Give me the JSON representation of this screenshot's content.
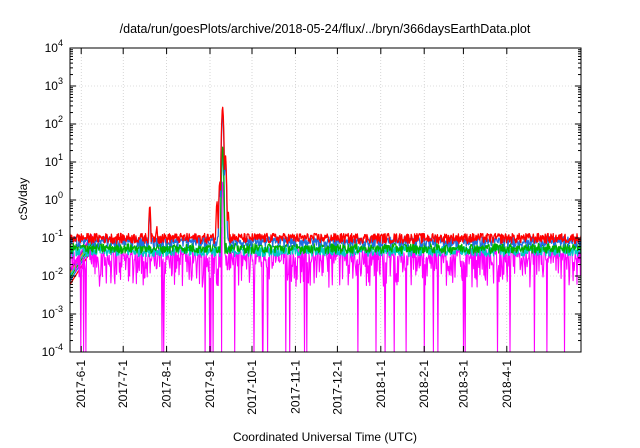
{
  "chart_data": {
    "type": "line",
    "title": "/data/run/goesPlots/archive/2018-05-24/flux/../bryn/366daysEarthData.plot",
    "xlabel": "Coordinated Universal Time (UTC)",
    "ylabel": "cSv/day",
    "y_scale": "log",
    "ylim": [
      0.0001,
      10000
    ],
    "y_ticks": [
      {
        "base": "10",
        "exp": "-4"
      },
      {
        "base": "10",
        "exp": "-3"
      },
      {
        "base": "10",
        "exp": "-2"
      },
      {
        "base": "10",
        "exp": "-1"
      },
      {
        "base": "10",
        "exp": "0"
      },
      {
        "base": "10",
        "exp": "1"
      },
      {
        "base": "10",
        "exp": "2"
      },
      {
        "base": "10",
        "exp": "3"
      },
      {
        "base": "10",
        "exp": "4"
      }
    ],
    "xlim": [
      "2017-05-24",
      "2018-05-24"
    ],
    "x_ticks": [
      "2017-6-1",
      "2017-7-1",
      "2017-8-1",
      "2017-9-1",
      "2017-10-1",
      "2017-11-1",
      "2017-12-1",
      "2018-1-1",
      "2018-2-1",
      "2018-3-1",
      "2018-4-1"
    ],
    "grid": true,
    "series_colors": [
      "#ff0000",
      "#1f6fe0",
      "#00b000",
      "#00c8c8",
      "#ffa000",
      "#7030a0",
      "#ff00ff"
    ],
    "series": [
      {
        "color": "#ff0000",
        "baseline": 0.11,
        "events": [
          {
            "date": "2017-07-20",
            "value": 0.7
          },
          {
            "date": "2017-07-25",
            "value": 0.2
          },
          {
            "date": "2017-09-06",
            "value": 0.9
          },
          {
            "date": "2017-09-08",
            "value": 3.0
          },
          {
            "date": "2017-09-10",
            "value": 280
          },
          {
            "date": "2017-09-12",
            "value": 15
          },
          {
            "date": "2017-09-14",
            "value": 0.5
          }
        ]
      },
      {
        "color": "#1f6fe0",
        "baseline": 0.09,
        "events": [
          {
            "date": "2017-07-20",
            "value": 0.5
          },
          {
            "date": "2017-09-08",
            "value": 2.0
          },
          {
            "date": "2017-09-10",
            "value": 200
          },
          {
            "date": "2017-09-12",
            "value": 10
          }
        ]
      },
      {
        "color": "#00b000",
        "baseline": 0.06,
        "events": [
          {
            "date": "2017-09-10",
            "value": 25
          }
        ]
      },
      {
        "color": "#00c8c8",
        "baseline": 0.05,
        "events": [
          {
            "date": "2017-09-10",
            "value": 15
          }
        ]
      },
      {
        "color": "#ff00ff",
        "baseline": 0.03,
        "low": 0.005,
        "events": [
          {
            "date": "2017-09-10",
            "value": 3
          }
        ]
      }
    ]
  }
}
